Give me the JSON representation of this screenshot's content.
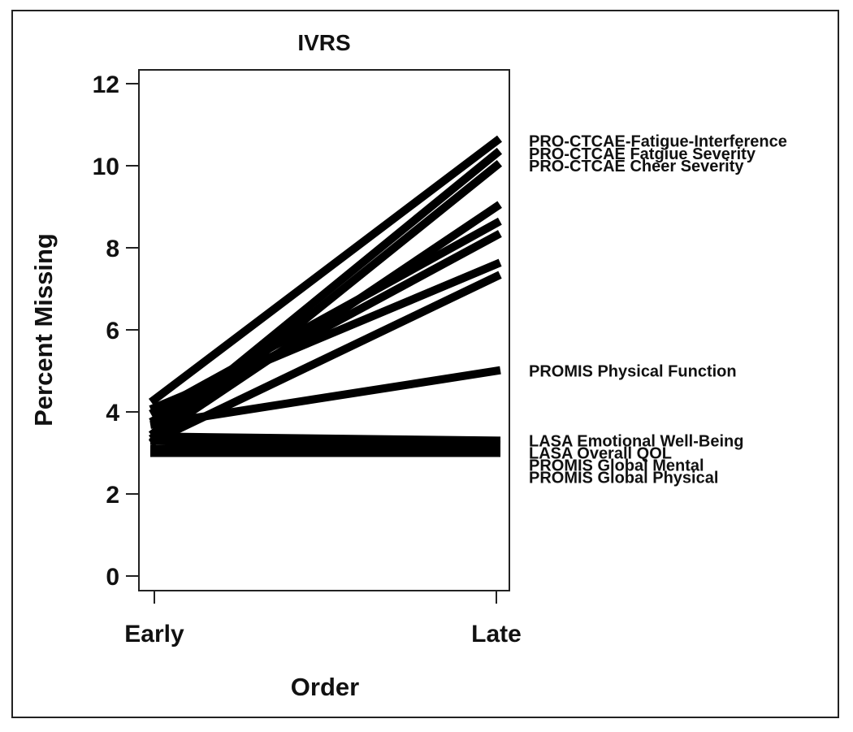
{
  "chart_data": {
    "type": "line",
    "title": "IVRS",
    "xlabel": "Order",
    "ylabel": "Percent Missing",
    "categories": [
      "Early",
      "Late"
    ],
    "ylim": [
      0,
      12
    ],
    "yticks": [
      0,
      2,
      4,
      6,
      8,
      10,
      12
    ],
    "grid": false,
    "legend": "none",
    "line_color": "#000000",
    "series": [
      {
        "name": "PRO-CTCAE-Fatigue-Interference",
        "values": [
          4.3,
          10.6
        ]
      },
      {
        "name": "PRO-CTCAE Fatgiue Severity",
        "values": [
          3.5,
          10.3
        ]
      },
      {
        "name": "PRO-CTCAE Cheer Severity",
        "values": [
          3.3,
          10.0
        ]
      },
      {
        "values": [
          3.4,
          9.0
        ]
      },
      {
        "values": [
          4.0,
          8.6
        ]
      },
      {
        "values": [
          3.8,
          8.3
        ]
      },
      {
        "values": [
          4.1,
          7.6
        ]
      },
      {
        "values": [
          3.3,
          7.3
        ]
      },
      {
        "name": "PROMIS Physical Function",
        "values": [
          3.7,
          5.0
        ]
      },
      {
        "name": "LASA Emotional Well-Being",
        "values": [
          3.4,
          3.3
        ]
      },
      {
        "name": "LASA Overall QOL",
        "values": [
          3.3,
          3.2
        ]
      },
      {
        "name": "PROMIS Global Mental",
        "values": [
          3.1,
          3.1
        ]
      },
      {
        "name": "PROMIS Global Physical",
        "values": [
          3.0,
          3.0
        ]
      }
    ]
  }
}
